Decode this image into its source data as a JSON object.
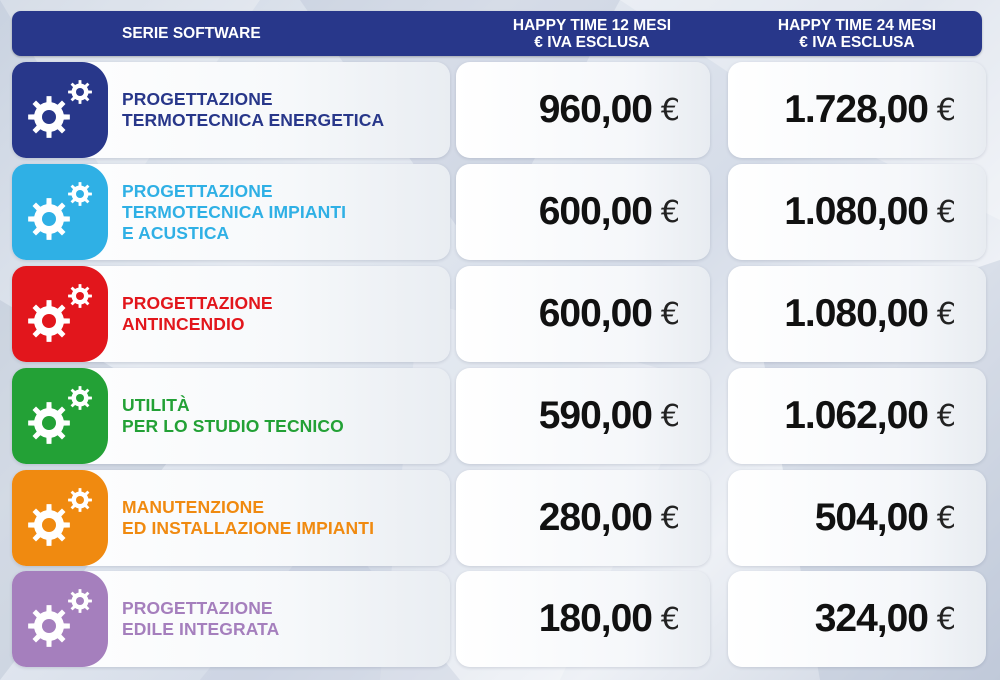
{
  "header": {
    "series": "SERIE SOFTWARE",
    "col12_line1": "HAPPY TIME 12 MESI",
    "col12_line2": "€ IVA ESCLUSA",
    "col24_line1": "HAPPY TIME 24 MESI",
    "col24_line2": "€ IVA ESCLUSA"
  },
  "currency_symbol": "€",
  "rows": [
    {
      "lines": [
        "PROGETTAZIONE",
        "TERMOTECNICA ENERGETICA"
      ],
      "color": "#28378a",
      "price_12": "960,00",
      "price_24": "1.728,00",
      "icon": "gear-icon"
    },
    {
      "lines": [
        "PROGETTAZIONE",
        "TERMOTECNICA IMPIANTI",
        "E ACUSTICA"
      ],
      "color": "#2fb0e5",
      "price_12": "600,00",
      "price_24": "1.080,00",
      "icon": "gear-icon"
    },
    {
      "lines": [
        "PROGETTAZIONE",
        "ANTINCENDIO"
      ],
      "color": "#e2161c",
      "price_12": "600,00",
      "price_24": "1.080,00",
      "icon": "gear-icon"
    },
    {
      "lines": [
        "UTILITÀ",
        "PER LO STUDIO TECNICO"
      ],
      "color": "#23a136",
      "price_12": "590,00",
      "price_24": "1.062,00",
      "icon": "gear-icon"
    },
    {
      "lines": [
        "MANUTENZIONE",
        "ED INSTALLAZIONE IMPIANTI"
      ],
      "color": "#f08a10",
      "price_12": "280,00",
      "price_24": "504,00",
      "icon": "gear-icon"
    },
    {
      "lines": [
        "PROGETTAZIONE",
        "EDILE INTEGRATA"
      ],
      "color": "#a57fbd",
      "price_12": "180,00",
      "price_24": "324,00",
      "icon": "gear-icon"
    }
  ]
}
